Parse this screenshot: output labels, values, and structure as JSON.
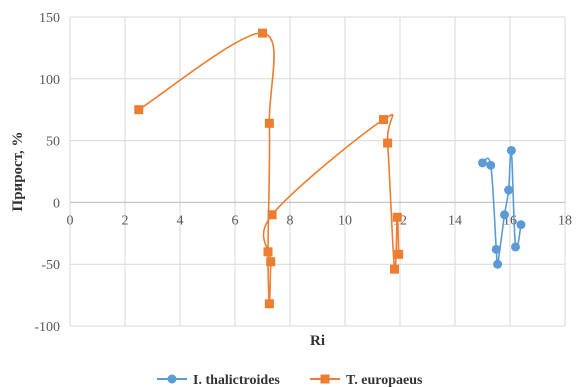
{
  "chart_data": {
    "type": "scatter",
    "title": "",
    "xlabel": "Ri",
    "ylabel": "Прирост, %",
    "xlim": [
      0,
      18
    ],
    "ylim": [
      -100,
      150
    ],
    "x_ticks": [
      0,
      2,
      4,
      6,
      8,
      10,
      12,
      14,
      16,
      18
    ],
    "y_ticks": [
      -100,
      -50,
      0,
      50,
      100,
      150
    ],
    "x_tick_labels": [
      "0",
      "2",
      "4",
      "6",
      "8",
      "10",
      "12",
      "14",
      "16",
      "18"
    ],
    "y_tick_labels": [
      "-100",
      "-50",
      "0",
      "50",
      "100",
      "150"
    ],
    "grid": true,
    "legend_position": "bottom",
    "line_style": "smooth",
    "series": [
      {
        "name": "I. thalictroides",
        "color": "#5b9bd5",
        "marker": "circle",
        "points": [
          [
            15.0,
            32
          ],
          [
            15.3,
            30
          ],
          [
            15.5,
            -38
          ],
          [
            15.55,
            -50
          ],
          [
            15.8,
            -10
          ],
          [
            15.95,
            10
          ],
          [
            16.05,
            42
          ],
          [
            16.2,
            -36
          ],
          [
            16.4,
            -18
          ]
        ]
      },
      {
        "name": "T. europaeus",
        "color": "#ed7d31",
        "marker": "square",
        "points": [
          [
            2.5,
            75
          ],
          [
            7.0,
            137
          ],
          [
            7.25,
            64
          ],
          [
            7.2,
            -40
          ],
          [
            7.25,
            -82
          ],
          [
            7.3,
            -48
          ],
          [
            7.35,
            -10
          ],
          [
            11.4,
            67
          ],
          [
            11.55,
            48
          ],
          [
            11.8,
            -54
          ],
          [
            11.9,
            -12
          ],
          [
            11.95,
            -42
          ]
        ]
      }
    ]
  }
}
